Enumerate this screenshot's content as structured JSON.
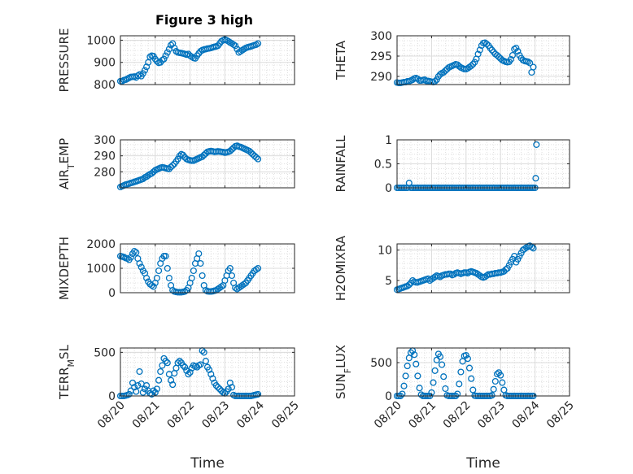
{
  "title": "Figure 3 high",
  "chart_data": [
    {
      "type": "scatter",
      "ylabel": "PRESSURE",
      "ylim": [
        800,
        1020
      ],
      "yticks": [
        800,
        900,
        1000
      ],
      "grid": "minor",
      "x": [
        0.0,
        0.05,
        0.1,
        0.15,
        0.2,
        0.25,
        0.3,
        0.35,
        0.4,
        0.45,
        0.5,
        0.55,
        0.6,
        0.65,
        0.7,
        0.75,
        0.8,
        0.85,
        0.9,
        0.95,
        1.0,
        1.05,
        1.1,
        1.15,
        1.2,
        1.25,
        1.3,
        1.35,
        1.4,
        1.45,
        1.5,
        1.55,
        1.6,
        1.65,
        1.7,
        1.75,
        1.8,
        1.85,
        1.9,
        1.95,
        2.0,
        2.05,
        2.1,
        2.15,
        2.2,
        2.25,
        2.3,
        2.35,
        2.4,
        2.45,
        2.5,
        2.55,
        2.6,
        2.65,
        2.7,
        2.75,
        2.8,
        2.85,
        2.9,
        2.95,
        3.0,
        3.05,
        3.1,
        3.15,
        3.2,
        3.25,
        3.3,
        3.35,
        3.4,
        3.45,
        3.5,
        3.55,
        3.6,
        3.65,
        3.7,
        3.75,
        3.8,
        3.85,
        3.9,
        3.95
      ],
      "values": [
        815,
        815,
        820,
        822,
        826,
        830,
        834,
        835,
        836,
        832,
        840,
        845,
        838,
        850,
        864,
        880,
        900,
        925,
        930,
        928,
        915,
        905,
        898,
        900,
        910,
        915,
        930,
        945,
        960,
        978,
        985,
        965,
        950,
        945,
        943,
        942,
        940,
        938,
        935,
        938,
        930,
        925,
        920,
        918,
        930,
        940,
        950,
        955,
        958,
        960,
        962,
        963,
        965,
        968,
        970,
        972,
        975,
        985,
        995,
        1000,
        1003,
        1000,
        995,
        990,
        985,
        980,
        975,
        960,
        945,
        950,
        955,
        960,
        965,
        968,
        970,
        972,
        975,
        978,
        980,
        985
      ]
    },
    {
      "type": "scatter",
      "ylabel": "THETA",
      "ylim": [
        288,
        300
      ],
      "yticks": [
        290,
        295,
        300
      ],
      "grid": "minor",
      "x": [
        0.0,
        0.05,
        0.1,
        0.15,
        0.2,
        0.25,
        0.3,
        0.35,
        0.4,
        0.45,
        0.5,
        0.55,
        0.6,
        0.65,
        0.7,
        0.75,
        0.8,
        0.85,
        0.9,
        0.95,
        1.0,
        1.05,
        1.1,
        1.15,
        1.2,
        1.25,
        1.3,
        1.35,
        1.4,
        1.45,
        1.5,
        1.55,
        1.6,
        1.65,
        1.7,
        1.75,
        1.8,
        1.85,
        1.9,
        1.95,
        2.0,
        2.05,
        2.1,
        2.15,
        2.2,
        2.25,
        2.3,
        2.35,
        2.4,
        2.45,
        2.5,
        2.55,
        2.6,
        2.65,
        2.7,
        2.75,
        2.8,
        2.85,
        2.9,
        2.95,
        3.0,
        3.05,
        3.1,
        3.15,
        3.2,
        3.25,
        3.3,
        3.35,
        3.4,
        3.45,
        3.5,
        3.55,
        3.6,
        3.65,
        3.7,
        3.75,
        3.8,
        3.85,
        3.9,
        3.95
      ],
      "values": [
        288.5,
        288.4,
        288.4,
        288.5,
        288.6,
        288.6,
        288.8,
        288.8,
        289.0,
        289.2,
        289.5,
        289.6,
        289.4,
        289.0,
        289.0,
        289.1,
        289.2,
        288.9,
        288.9,
        288.8,
        288.7,
        288.6,
        288.8,
        289.2,
        290.0,
        290.5,
        290.8,
        291.0,
        291.4,
        291.8,
        292.2,
        292.4,
        292.6,
        292.8,
        293.0,
        292.9,
        292.5,
        292.2,
        292.0,
        291.8,
        291.8,
        292.0,
        292.3,
        292.6,
        293.0,
        293.5,
        294.3,
        295.5,
        296.5,
        297.6,
        298.2,
        298.3,
        298.0,
        297.6,
        297.0,
        296.5,
        296.0,
        295.5,
        295.2,
        294.8,
        294.4,
        294.0,
        293.8,
        293.6,
        293.5,
        293.6,
        294.2,
        295.2,
        296.7,
        297.0,
        296.2,
        295.2,
        294.5,
        294.0,
        293.8,
        293.7,
        293.6,
        293.3,
        291.0,
        292.3
      ]
    },
    {
      "type": "scatter",
      "ylabel": "AIR_TEMP",
      "ylim": [
        270,
        300
      ],
      "yticks": [
        280,
        290,
        300
      ],
      "grid": "minor",
      "x": [
        0.0,
        0.05,
        0.1,
        0.15,
        0.2,
        0.25,
        0.3,
        0.35,
        0.4,
        0.45,
        0.5,
        0.55,
        0.6,
        0.65,
        0.7,
        0.75,
        0.8,
        0.85,
        0.9,
        0.95,
        1.0,
        1.05,
        1.1,
        1.15,
        1.2,
        1.25,
        1.3,
        1.35,
        1.4,
        1.45,
        1.5,
        1.55,
        1.6,
        1.65,
        1.7,
        1.75,
        1.8,
        1.85,
        1.9,
        1.95,
        2.0,
        2.05,
        2.1,
        2.15,
        2.2,
        2.25,
        2.3,
        2.35,
        2.4,
        2.45,
        2.5,
        2.55,
        2.6,
        2.65,
        2.7,
        2.75,
        2.8,
        2.85,
        2.9,
        2.95,
        3.0,
        3.05,
        3.1,
        3.15,
        3.2,
        3.25,
        3.3,
        3.35,
        3.4,
        3.45,
        3.5,
        3.55,
        3.6,
        3.65,
        3.7,
        3.75,
        3.8,
        3.85,
        3.9,
        3.95
      ],
      "values": [
        270.5,
        271.0,
        271.5,
        272.0,
        272.3,
        272.6,
        273.0,
        273.3,
        273.7,
        274.0,
        274.4,
        274.8,
        275.2,
        275.6,
        276.5,
        277.0,
        277.8,
        278.5,
        279.0,
        280.0,
        281.0,
        281.5,
        282.0,
        282.5,
        282.8,
        282.6,
        282.3,
        282.0,
        281.8,
        283.0,
        284.0,
        285.0,
        286.5,
        288.0,
        290.0,
        291.0,
        290.5,
        289.0,
        288.0,
        287.5,
        287.2,
        287.0,
        287.0,
        287.5,
        288.0,
        288.5,
        289.0,
        289.5,
        290.5,
        291.5,
        292.5,
        292.8,
        293.0,
        292.8,
        292.5,
        292.6,
        292.8,
        292.7,
        292.5,
        292.3,
        292.0,
        292.2,
        292.5,
        293.0,
        294.0,
        295.0,
        296.0,
        296.3,
        295.8,
        295.5,
        295.0,
        294.5,
        294.0,
        293.5,
        293.0,
        292.0,
        291.0,
        290.0,
        289.0,
        288.0
      ]
    },
    {
      "type": "scatter",
      "ylabel": "RAINFALL",
      "ylim": [
        0,
        1
      ],
      "yticks": [
        0,
        0.5,
        1
      ],
      "grid": "minor",
      "x": [
        0.0,
        0.05,
        0.1,
        0.15,
        0.2,
        0.25,
        0.3,
        0.35,
        0.4,
        0.45,
        0.5,
        0.55,
        0.6,
        0.65,
        0.7,
        0.75,
        0.8,
        0.85,
        0.9,
        0.95,
        1.0,
        1.05,
        1.1,
        1.15,
        1.2,
        1.25,
        1.3,
        1.35,
        1.4,
        1.45,
        1.5,
        1.55,
        1.6,
        1.65,
        1.7,
        1.75,
        1.8,
        1.85,
        1.9,
        1.95,
        2.0,
        2.05,
        2.1,
        2.15,
        2.2,
        2.25,
        2.3,
        2.35,
        2.4,
        2.45,
        2.5,
        2.55,
        2.6,
        2.65,
        2.7,
        2.75,
        2.8,
        2.85,
        2.9,
        2.95,
        3.0,
        3.05,
        3.1,
        3.15,
        3.2,
        3.25,
        3.3,
        3.35,
        3.4,
        3.45,
        3.5,
        3.55,
        3.6,
        3.65,
        3.7,
        3.75,
        3.8,
        3.85,
        3.9,
        3.95,
        4.0,
        4.02,
        4.04
      ],
      "values": [
        0,
        0,
        0,
        0,
        0,
        0,
        0,
        0.1,
        0,
        0,
        0,
        0,
        0,
        0,
        0,
        0,
        0,
        0,
        0,
        0,
        0,
        0,
        0,
        0,
        0,
        0,
        0,
        0,
        0,
        0,
        0,
        0,
        0,
        0,
        0,
        0,
        0,
        0,
        0,
        0,
        0,
        0,
        0,
        0,
        0,
        0,
        0,
        0,
        0,
        0,
        0,
        0,
        0,
        0,
        0,
        0,
        0,
        0,
        0,
        0,
        0,
        0,
        0,
        0,
        0,
        0,
        0,
        0,
        0,
        0,
        0,
        0,
        0,
        0,
        0,
        0,
        0,
        0,
        0,
        0,
        0,
        0.2,
        0.9
      ]
    },
    {
      "type": "scatter",
      "ylabel": "MIXDEPTH",
      "ylim": [
        0,
        2000
      ],
      "yticks": [
        0,
        1000,
        2000
      ],
      "grid": "minor",
      "x": [
        0.0,
        0.05,
        0.1,
        0.15,
        0.2,
        0.25,
        0.3,
        0.35,
        0.4,
        0.45,
        0.5,
        0.55,
        0.6,
        0.65,
        0.7,
        0.75,
        0.8,
        0.85,
        0.9,
        0.95,
        1.0,
        1.05,
        1.1,
        1.15,
        1.2,
        1.25,
        1.3,
        1.35,
        1.4,
        1.45,
        1.5,
        1.55,
        1.6,
        1.65,
        1.7,
        1.75,
        1.8,
        1.85,
        1.9,
        1.95,
        2.0,
        2.05,
        2.1,
        2.15,
        2.2,
        2.25,
        2.3,
        2.35,
        2.4,
        2.45,
        2.5,
        2.55,
        2.6,
        2.65,
        2.7,
        2.75,
        2.8,
        2.85,
        2.9,
        2.95,
        3.0,
        3.05,
        3.1,
        3.15,
        3.2,
        3.25,
        3.3,
        3.35,
        3.4,
        3.45,
        3.5,
        3.55,
        3.6,
        3.65,
        3.7,
        3.75,
        3.8,
        3.85,
        3.9,
        3.95
      ],
      "values": [
        1500,
        1480,
        1460,
        1420,
        1400,
        1350,
        1450,
        1600,
        1700,
        1650,
        1400,
        1200,
        1050,
        900,
        800,
        600,
        450,
        350,
        300,
        250,
        400,
        600,
        900,
        1200,
        1400,
        1500,
        1500,
        1000,
        600,
        300,
        100,
        50,
        30,
        20,
        20,
        20,
        30,
        50,
        100,
        200,
        400,
        600,
        900,
        1200,
        1400,
        1600,
        1200,
        700,
        300,
        100,
        60,
        50,
        50,
        60,
        80,
        100,
        150,
        200,
        250,
        300,
        500,
        700,
        900,
        1000,
        700,
        400,
        200,
        150,
        200,
        250,
        300,
        350,
        400,
        500,
        600,
        700,
        800,
        900,
        950,
        1000
      ]
    },
    {
      "type": "scatter",
      "ylabel": "H2OMIXRA",
      "ylim": [
        3,
        11
      ],
      "yticks": [
        5,
        10
      ],
      "grid": "minor",
      "x": [
        0.0,
        0.05,
        0.1,
        0.15,
        0.2,
        0.25,
        0.3,
        0.35,
        0.4,
        0.45,
        0.5,
        0.55,
        0.6,
        0.65,
        0.7,
        0.75,
        0.8,
        0.85,
        0.9,
        0.95,
        1.0,
        1.05,
        1.1,
        1.15,
        1.2,
        1.25,
        1.3,
        1.35,
        1.4,
        1.45,
        1.5,
        1.55,
        1.6,
        1.65,
        1.7,
        1.75,
        1.8,
        1.85,
        1.9,
        1.95,
        2.0,
        2.05,
        2.1,
        2.15,
        2.2,
        2.25,
        2.3,
        2.35,
        2.4,
        2.45,
        2.5,
        2.55,
        2.6,
        2.65,
        2.7,
        2.75,
        2.8,
        2.85,
        2.9,
        2.95,
        3.0,
        3.05,
        3.1,
        3.15,
        3.2,
        3.25,
        3.3,
        3.35,
        3.4,
        3.45,
        3.5,
        3.55,
        3.6,
        3.65,
        3.7,
        3.75,
        3.8,
        3.85,
        3.9,
        3.95
      ],
      "values": [
        3.5,
        3.6,
        3.7,
        3.8,
        3.9,
        4.0,
        4.1,
        4.3,
        4.6,
        5.0,
        4.8,
        4.7,
        4.7,
        4.8,
        4.9,
        5.0,
        5.1,
        5.2,
        5.3,
        5.0,
        5.2,
        5.4,
        5.6,
        5.8,
        5.7,
        5.6,
        5.8,
        5.9,
        6.0,
        6.0,
        6.1,
        6.1,
        5.9,
        6.0,
        6.2,
        6.3,
        6.2,
        6.1,
        6.2,
        6.3,
        6.3,
        6.2,
        6.4,
        6.5,
        6.4,
        6.3,
        6.2,
        6.0,
        5.8,
        5.6,
        5.5,
        5.6,
        5.8,
        6.0,
        6.0,
        6.1,
        6.1,
        6.2,
        6.2,
        6.3,
        6.3,
        6.4,
        6.5,
        6.8,
        7.0,
        7.5,
        8.0,
        8.5,
        9.0,
        8.0,
        8.5,
        9.0,
        9.5,
        10.0,
        10.2,
        10.4,
        10.6,
        10.7,
        10.5,
        10.3
      ]
    },
    {
      "type": "scatter",
      "ylabel": "TERR_MSL",
      "ylim": [
        0,
        550
      ],
      "yticks": [
        0,
        500
      ],
      "grid": "minor",
      "x": [
        0.0,
        0.05,
        0.1,
        0.15,
        0.2,
        0.25,
        0.3,
        0.35,
        0.4,
        0.45,
        0.5,
        0.55,
        0.6,
        0.65,
        0.7,
        0.75,
        0.8,
        0.85,
        0.9,
        0.95,
        1.0,
        1.05,
        1.1,
        1.15,
        1.2,
        1.25,
        1.3,
        1.35,
        1.4,
        1.45,
        1.5,
        1.55,
        1.6,
        1.65,
        1.7,
        1.75,
        1.8,
        1.85,
        1.9,
        1.95,
        2.0,
        2.05,
        2.1,
        2.15,
        2.2,
        2.25,
        2.3,
        2.35,
        2.4,
        2.45,
        2.5,
        2.55,
        2.6,
        2.65,
        2.7,
        2.75,
        2.8,
        2.85,
        2.9,
        2.95,
        3.0,
        3.05,
        3.1,
        3.15,
        3.2,
        3.25,
        3.3,
        3.35,
        3.4,
        3.45,
        3.5,
        3.55,
        3.6,
        3.65,
        3.7,
        3.75,
        3.8,
        3.85,
        3.9,
        3.95
      ],
      "values": [
        0,
        0,
        0,
        5,
        10,
        20,
        60,
        150,
        100,
        50,
        120,
        280,
        140,
        40,
        80,
        120,
        60,
        30,
        20,
        60,
        40,
        80,
        180,
        280,
        350,
        430,
        400,
        380,
        250,
        180,
        130,
        260,
        320,
        380,
        400,
        380,
        350,
        330,
        290,
        250,
        270,
        320,
        350,
        340,
        330,
        350,
        360,
        520,
        500,
        400,
        330,
        300,
        250,
        200,
        150,
        120,
        100,
        80,
        60,
        40,
        30,
        50,
        80,
        150,
        100,
        10,
        0,
        0,
        0,
        0,
        0,
        0,
        0,
        0,
        0,
        0,
        5,
        10,
        15,
        20
      ]
    },
    {
      "type": "scatter",
      "ylabel": "SUN_FLUX",
      "ylim": [
        0,
        720
      ],
      "yticks": [
        0,
        500
      ],
      "grid": "minor",
      "x": [
        0.0,
        0.05,
        0.1,
        0.15,
        0.2,
        0.25,
        0.3,
        0.35,
        0.4,
        0.45,
        0.5,
        0.55,
        0.6,
        0.65,
        0.7,
        0.75,
        0.8,
        0.85,
        0.9,
        0.95,
        1.0,
        1.05,
        1.1,
        1.15,
        1.2,
        1.25,
        1.3,
        1.35,
        1.4,
        1.45,
        1.5,
        1.55,
        1.6,
        1.65,
        1.7,
        1.75,
        1.8,
        1.85,
        1.9,
        1.95,
        2.0,
        2.05,
        2.1,
        2.15,
        2.2,
        2.25,
        2.3,
        2.35,
        2.4,
        2.45,
        2.5,
        2.55,
        2.6,
        2.65,
        2.7,
        2.75,
        2.8,
        2.85,
        2.9,
        2.95,
        3.0,
        3.05,
        3.1,
        3.15,
        3.2,
        3.25,
        3.3,
        3.35,
        3.4,
        3.45,
        3.5,
        3.55,
        3.6,
        3.65,
        3.7,
        3.75,
        3.8,
        3.85,
        3.9,
        3.95
      ],
      "values": [
        0,
        0,
        0,
        30,
        150,
        300,
        450,
        570,
        650,
        680,
        620,
        480,
        300,
        120,
        20,
        0,
        0,
        0,
        0,
        0,
        50,
        200,
        380,
        540,
        630,
        590,
        470,
        290,
        110,
        10,
        0,
        0,
        0,
        0,
        0,
        30,
        180,
        360,
        520,
        600,
        610,
        560,
        420,
        260,
        90,
        5,
        0,
        0,
        0,
        0,
        0,
        0,
        0,
        0,
        0,
        10,
        100,
        220,
        330,
        350,
        310,
        200,
        90,
        10,
        0,
        0,
        0,
        0,
        0,
        0,
        0,
        0,
        0,
        0,
        0,
        0,
        0,
        0,
        0,
        0
      ]
    }
  ],
  "x_axis": {
    "ticks": [
      0,
      1,
      2,
      3,
      4,
      5
    ],
    "tick_labels": [
      "08/20",
      "08/21",
      "08/22",
      "08/23",
      "08/24",
      "08/25"
    ],
    "xlabel": "Time",
    "xlim": [
      0,
      5
    ]
  },
  "colors": {
    "marker": "#0072bd",
    "grid": "#cccccc",
    "axis": "#262626"
  }
}
